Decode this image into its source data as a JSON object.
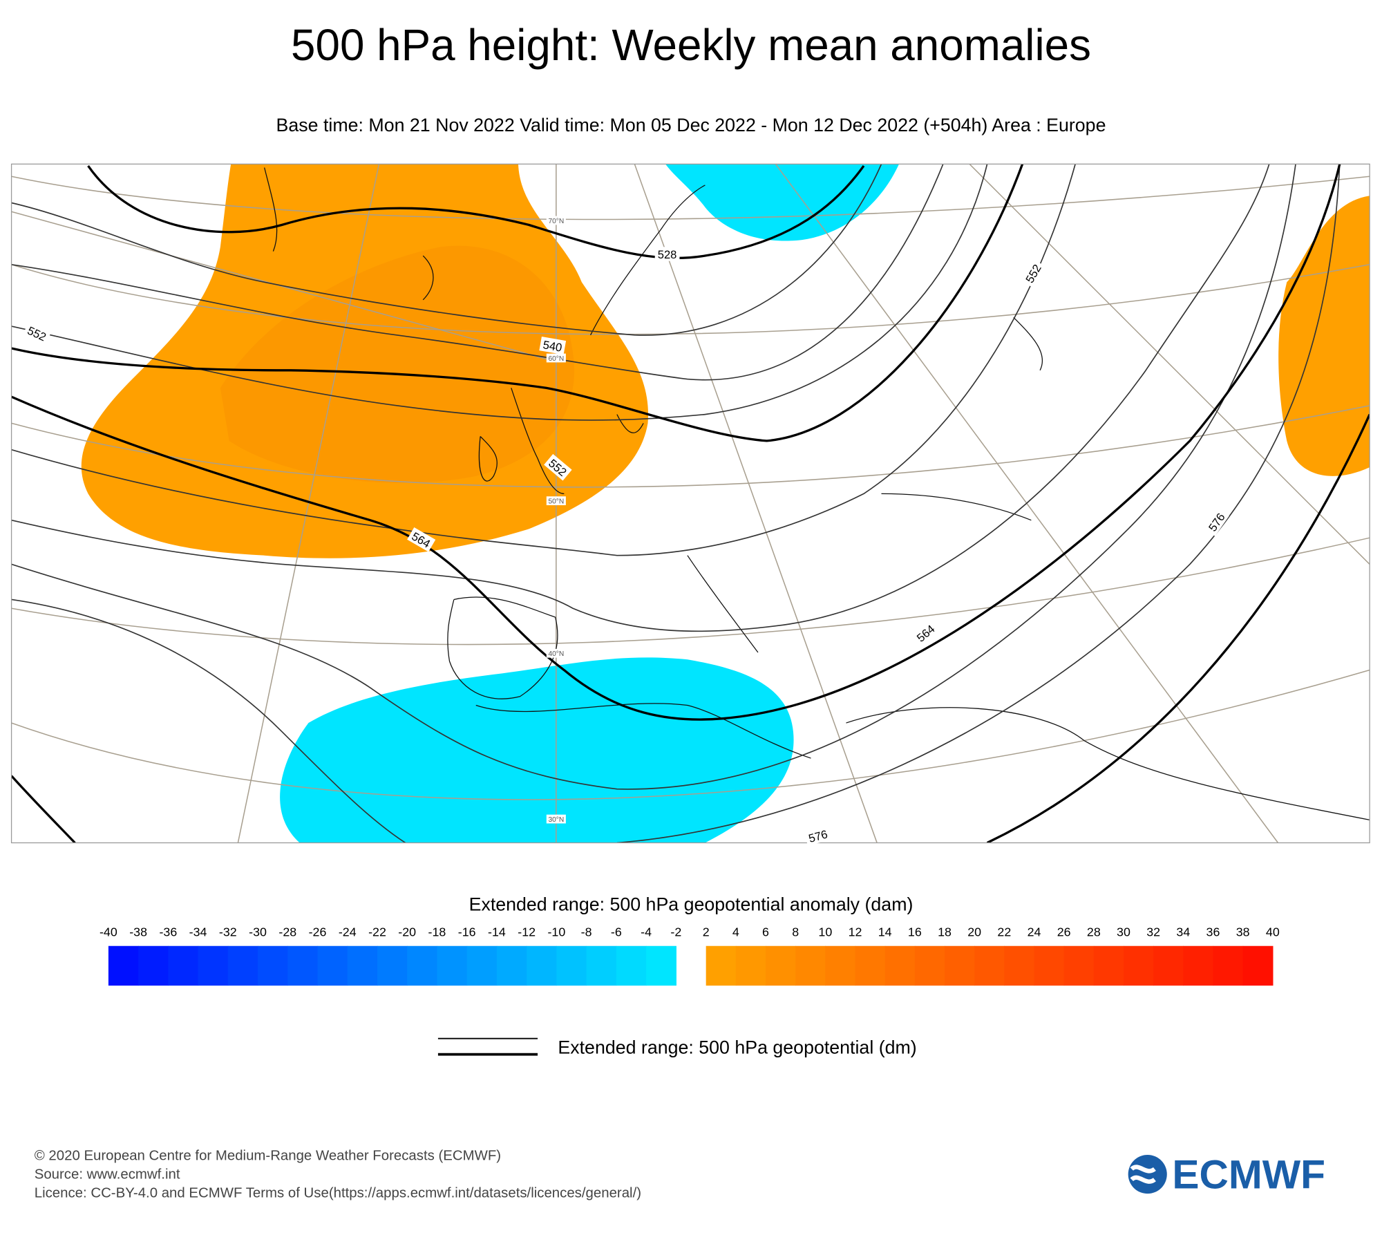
{
  "title": "500 hPa height: Weekly mean anomalies",
  "subtitle": "Base time: Mon 21 Nov 2022 Valid time: Mon 05 Dec 2022 - Mon 12 Dec 2022 (+504h) Area : Europe",
  "map": {
    "contour_labels": [
      "528",
      "540",
      "552",
      "552",
      "552",
      "564",
      "564",
      "576",
      "576"
    ],
    "latitude_labels": [
      "70°N",
      "60°N",
      "50°N",
      "40°N",
      "30°N"
    ]
  },
  "colorbar": {
    "title": "Extended range: 500 hPa geopotential anomaly (dam)",
    "negative": {
      "ticks": [
        -40,
        -38,
        -36,
        -34,
        -32,
        -30,
        -28,
        -26,
        -24,
        -22,
        -20,
        -18,
        -16,
        -14,
        -12,
        -10,
        -8,
        -6,
        -4,
        -2
      ],
      "colors": [
        "#0010ff",
        "#001cff",
        "#0028ff",
        "#0034ff",
        "#0040ff",
        "#004cff",
        "#0057ff",
        "#0063ff",
        "#006fff",
        "#007bff",
        "#0087ff",
        "#0093ff",
        "#009eff",
        "#00aaff",
        "#00b6ff",
        "#00c2ff",
        "#00ceff",
        "#00daff",
        "#00e5ff"
      ]
    },
    "positive": {
      "ticks": [
        2,
        4,
        6,
        8,
        10,
        12,
        14,
        16,
        18,
        20,
        22,
        24,
        26,
        28,
        30,
        32,
        34,
        36,
        38,
        40
      ],
      "colors": [
        "#ffa000",
        "#ff9800",
        "#ff9000",
        "#ff8800",
        "#ff8000",
        "#ff7800",
        "#ff7000",
        "#ff6800",
        "#ff6000",
        "#ff5800",
        "#ff5000",
        "#ff4800",
        "#ff4000",
        "#ff3800",
        "#ff3000",
        "#ff2800",
        "#ff2000",
        "#ff1800",
        "#ff1000"
      ]
    }
  },
  "line_legend": {
    "label": "Extended range: 500 hPa geopotential (dm)"
  },
  "footer": {
    "lines": [
      "© 2020 European Centre for Medium-Range Weather Forecasts (ECMWF)",
      "Source: www.ecmwf.int",
      "Licence: CC-BY-4.0 and ECMWF Terms of Use(https://apps.ecmwf.int/datasets/licences/general/)"
    ]
  },
  "logo": "ECMWF"
}
